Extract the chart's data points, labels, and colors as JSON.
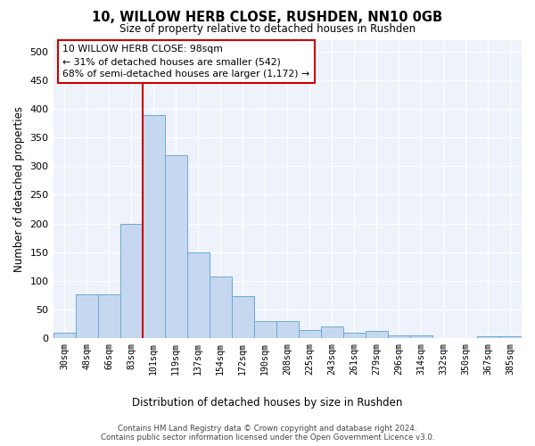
{
  "title": "10, WILLOW HERB CLOSE, RUSHDEN, NN10 0GB",
  "subtitle": "Size of property relative to detached houses in Rushden",
  "xlabel": "Distribution of detached houses by size in Rushden",
  "ylabel": "Number of detached properties",
  "categories": [
    "30sqm",
    "48sqm",
    "66sqm",
    "83sqm",
    "101sqm",
    "119sqm",
    "137sqm",
    "154sqm",
    "172sqm",
    "190sqm",
    "208sqm",
    "225sqm",
    "243sqm",
    "261sqm",
    "279sqm",
    "296sqm",
    "314sqm",
    "332sqm",
    "350sqm",
    "367sqm",
    "385sqm"
  ],
  "values": [
    10,
    77,
    77,
    200,
    390,
    320,
    150,
    108,
    73,
    30,
    30,
    15,
    20,
    10,
    12,
    5,
    5,
    0,
    0,
    3,
    4
  ],
  "bar_color": "#c5d8f0",
  "bar_edge_color": "#6aaad4",
  "vline_color": "#cc0000",
  "vline_index": 4,
  "annotation_text": "10 WILLOW HERB CLOSE: 98sqm\n← 31% of detached houses are smaller (542)\n68% of semi-detached houses are larger (1,172) →",
  "annotation_box_color": "#cc0000",
  "ylim": [
    0,
    520
  ],
  "yticks": [
    0,
    50,
    100,
    150,
    200,
    250,
    300,
    350,
    400,
    450,
    500
  ],
  "bg_color": "#eef2fb",
  "footer_line1": "Contains HM Land Registry data © Crown copyright and database right 2024.",
  "footer_line2": "Contains public sector information licensed under the Open Government Licence v3.0."
}
